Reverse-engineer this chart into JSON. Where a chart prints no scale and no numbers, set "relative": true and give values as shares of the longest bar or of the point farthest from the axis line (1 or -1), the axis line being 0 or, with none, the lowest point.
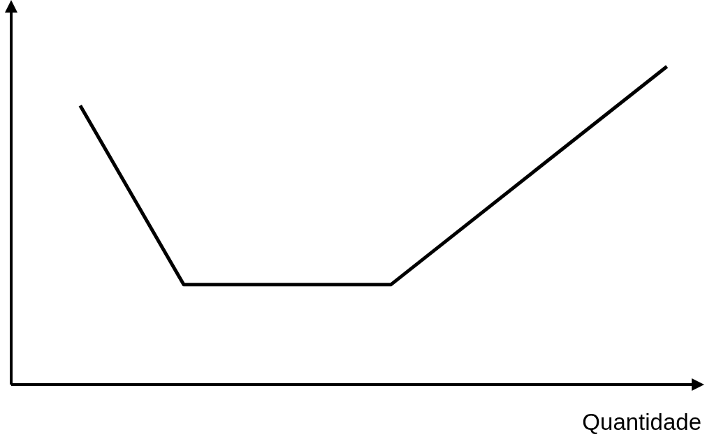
{
  "chart_data": {
    "type": "line",
    "relative": true,
    "xlabel": "Quantidade",
    "categories": [
      null,
      null,
      null,
      null,
      null,
      null,
      null,
      null,
      null,
      null,
      null,
      null,
      null,
      null,
      null,
      null,
      null,
      null,
      null,
      null,
      null
    ],
    "series": [
      {
        "color": "#000000",
        "values": [
          null,
          null,
          0.877,
          null,
          null,
          0.314,
          null,
          null,
          null,
          null,
          null,
          0.314,
          null,
          null,
          null,
          null,
          null,
          null,
          null,
          1,
          null
        ]
      }
    ],
    "grid": false,
    "legend": false,
    "marker": "none",
    "line_style": "solid"
  }
}
